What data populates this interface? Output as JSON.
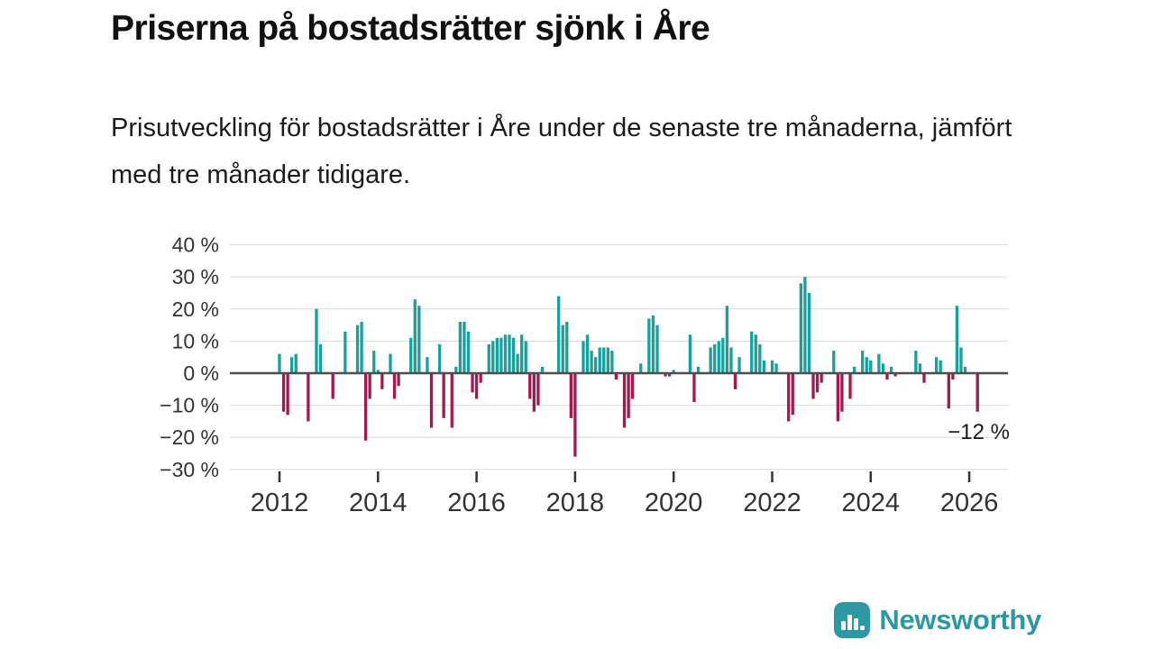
{
  "header": {
    "title": "Priserna på bostadsrätter sjönk i Åre",
    "subtitle": "Prisutveckling för bostadsrätter i Åre under de senaste tre månaderna, jämfört med tre månader tidigare."
  },
  "chart_data": {
    "type": "bar",
    "title": "Priserna på bostadsrätter sjönk i Åre",
    "subtitle": "Prisutveckling för bostadsrätter i Åre under de senaste tre månaderna, jämfört med tre månader tidigare.",
    "unit": "%",
    "x_start": "2012-01",
    "frequency": "monthly",
    "values": [
      6,
      -12,
      -13,
      5,
      6,
      0,
      0,
      -15,
      0,
      20,
      9,
      0,
      0,
      -8,
      0,
      0,
      13,
      0,
      0,
      15,
      16,
      -21,
      -8,
      7,
      1,
      -5,
      0,
      6,
      -8,
      -4,
      0,
      0,
      11,
      23,
      21,
      0,
      5,
      -17,
      0,
      9,
      -14,
      0,
      -17,
      2,
      16,
      16,
      13,
      -6,
      -8,
      -3,
      0,
      9,
      10,
      11,
      11,
      12,
      12,
      11,
      6,
      12,
      10,
      -8,
      -12,
      -10,
      2,
      0,
      0,
      0,
      24,
      15,
      16,
      -14,
      -26,
      0,
      10,
      12,
      7,
      5,
      8,
      8,
      8,
      7,
      -2,
      0,
      -17,
      -14,
      -8,
      0,
      3,
      0,
      17,
      18,
      15,
      0,
      -1,
      -1,
      1,
      0,
      0,
      0,
      12,
      -9,
      2,
      0,
      0,
      8,
      9,
      10,
      11,
      21,
      8,
      -5,
      5,
      0,
      0,
      13,
      12,
      9,
      4,
      0,
      4,
      3,
      0,
      0,
      -15,
      -13,
      0,
      28,
      30,
      25,
      -8,
      -6,
      -3,
      0,
      0,
      7,
      -15,
      -12,
      0,
      -8,
      2,
      0,
      7,
      5,
      4,
      0,
      6,
      3,
      -2,
      2,
      -1,
      0,
      0,
      0,
      0,
      7,
      3,
      -3,
      0,
      0,
      5,
      4,
      0,
      -11,
      -2,
      21,
      8,
      2,
      0,
      0,
      -12
    ],
    "ylim": [
      -30,
      40
    ],
    "y_ticks": [
      40,
      30,
      20,
      10,
      0,
      -10,
      -20,
      -30
    ],
    "y_tick_labels": [
      "40 %",
      "30 %",
      "20 %",
      "10 %",
      "0 %",
      "−10 %",
      "−20 %",
      "−30 %"
    ],
    "x_tick_labels": [
      "2012",
      "2014",
      "2016",
      "2018",
      "2020",
      "2022",
      "2024",
      "2026"
    ],
    "annotation": {
      "text": "−12 %",
      "value": -12
    },
    "colors": {
      "positive": "#16a09e",
      "negative": "#a3194f",
      "grid": "#d9d9d9",
      "zero_line": "#4d4d4d",
      "axis_text": "#333333",
      "annotation_text": "#1a1a1a"
    },
    "grid": true,
    "legend": false
  },
  "footer": {
    "brand": "Newsworthy",
    "brand_color": "#2b98a2",
    "logo_icon": "bar-chart-speech-bubble"
  }
}
